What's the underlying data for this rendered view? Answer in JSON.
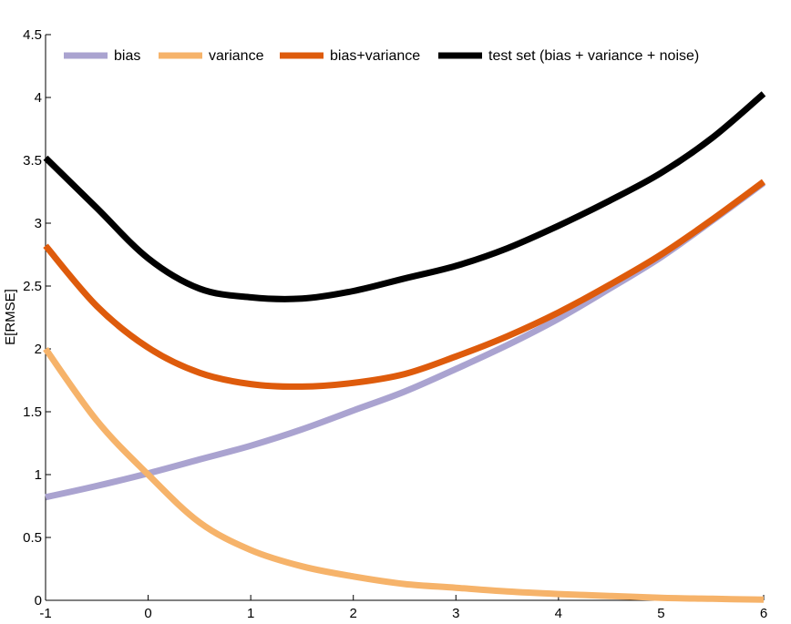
{
  "chart_data": {
    "type": "line",
    "xlabel": "",
    "ylabel": "E[RMSE]",
    "xlim": [
      -1,
      6
    ],
    "ylim": [
      0,
      4.5
    ],
    "x_ticks": [
      -1,
      0,
      1,
      2,
      3,
      4,
      5,
      6
    ],
    "y_ticks": [
      0,
      0.5,
      1,
      1.5,
      2,
      2.5,
      3,
      3.5,
      4,
      4.5
    ],
    "grid": false,
    "legend_position": "top",
    "x": [
      -1,
      -0.5,
      0,
      0.5,
      1,
      1.5,
      2,
      2.5,
      3,
      3.5,
      4,
      4.5,
      5,
      5.5,
      6
    ],
    "series": [
      {
        "name": "bias",
        "color": "#aaa3d0",
        "values": [
          0.82,
          0.91,
          1.01,
          1.12,
          1.23,
          1.36,
          1.51,
          1.66,
          1.84,
          2.03,
          2.24,
          2.48,
          2.73,
          3.02,
          3.32
        ]
      },
      {
        "name": "variance",
        "color": "#f6b36a",
        "values": [
          2.0,
          1.43,
          1.0,
          0.62,
          0.4,
          0.27,
          0.19,
          0.13,
          0.1,
          0.07,
          0.05,
          0.035,
          0.02,
          0.012,
          0.005
        ]
      },
      {
        "name": "bias+variance",
        "color": "#de5b0c",
        "values": [
          2.82,
          2.34,
          2.01,
          1.81,
          1.72,
          1.7,
          1.73,
          1.8,
          1.94,
          2.1,
          2.29,
          2.51,
          2.75,
          3.03,
          3.33
        ]
      },
      {
        "name": "test set (bias + variance + noise)",
        "color": "#000000",
        "values": [
          3.52,
          3.12,
          2.72,
          2.48,
          2.41,
          2.4,
          2.46,
          2.56,
          2.66,
          2.8,
          2.98,
          3.18,
          3.4,
          3.68,
          4.03
        ]
      }
    ]
  }
}
